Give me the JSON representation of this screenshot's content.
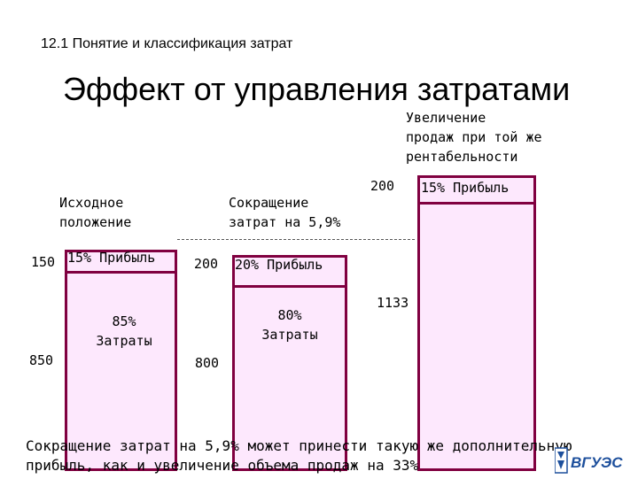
{
  "header": {
    "section": "12.1 Понятие и классификация затрат"
  },
  "title": "Эффект от управления затратами",
  "columns": {
    "initial": {
      "label_line1": "Исходное",
      "label_line2": "положение",
      "profit_value": "150",
      "profit_label": "15% Прибыль",
      "cost_value": "850",
      "cost_label_line1": "85%",
      "cost_label_line2": "Затраты"
    },
    "cost_cut": {
      "label_line1": "Сокращение",
      "label_line2": "затрат на 5,9%",
      "profit_value": "200",
      "profit_label": "20% Прибыль",
      "cost_value": "800",
      "cost_label_line1": "80%",
      "cost_label_line2": "Затраты"
    },
    "sales_increase": {
      "label_line1": "Увеличение",
      "label_line2": "продаж при той же",
      "label_line3": "рентабельности",
      "profit_value": "200",
      "profit_label": "15% Прибыль",
      "cost_value": "1133"
    }
  },
  "footer": {
    "line1": "Сокращение затрат на 5,9% может принести такую же дополнительную",
    "line2": "прибыль, как и увеличение объема продаж на 33%"
  },
  "logo": {
    "text": "ВГУЭС"
  },
  "colors": {
    "bar_border": "#800040",
    "bar_fill": "#fde8fd",
    "logo_blue": "#1d4f9c"
  }
}
